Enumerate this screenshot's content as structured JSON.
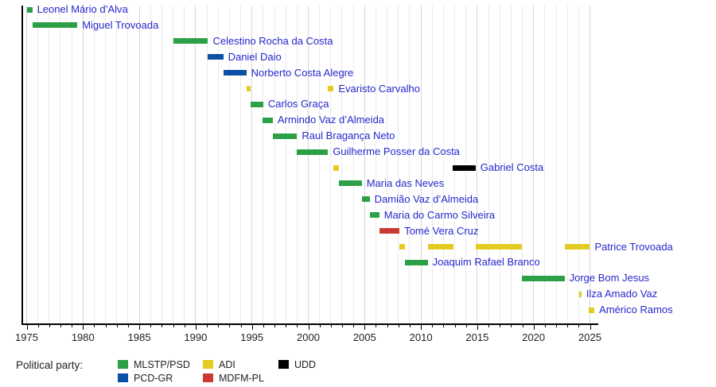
{
  "legend": {
    "title": "Political party:",
    "columns": [
      [
        {
          "label": "MLSTP/PSD",
          "party": "MLSTP/PSD"
        },
        {
          "label": "PCD-GR",
          "party": "PCD-GR"
        }
      ],
      [
        {
          "label": "ADI",
          "party": "ADI"
        },
        {
          "label": "MDFM-PL",
          "party": "MDFM-PL"
        }
      ],
      [
        {
          "label": "UDD",
          "party": "UDD"
        }
      ]
    ]
  },
  "colors": {
    "label_text": "#2727CC",
    "axis_text": "#202122",
    "gridline_minor": "#EAEAEA",
    "gridline_major": "#D6D6D6",
    "axis_line": "#000000"
  },
  "chart_data": {
    "type": "timeline",
    "title": "",
    "xlabel": "",
    "ylabel": "",
    "grid": "vertical, one line per year",
    "legend_position": "bottom",
    "x_axis": {
      "start": 1975,
      "end": 2025,
      "minor_tick_step": 1,
      "major_tick_step": 5,
      "tick_labels": [
        "1975",
        "1980",
        "1985",
        "1990",
        "1995",
        "2000",
        "2005",
        "2010",
        "2015",
        "2020",
        "2025"
      ]
    },
    "party_colors": {
      "MLSTP/PSD": "#2CA046",
      "PCD-GR": "#0C4FA6",
      "ADI": "#E4CB22",
      "MDFM-PL": "#C93A32",
      "UDD": "#000000"
    },
    "people": [
      {
        "name": "Leonel Mário d’Alva",
        "terms": [
          {
            "start": 1975.0,
            "end": 1975.5,
            "party": "MLSTP/PSD"
          }
        ]
      },
      {
        "name": "Miguel Trovoada",
        "terms": [
          {
            "start": 1975.55,
            "end": 1979.5,
            "party": "MLSTP/PSD"
          }
        ]
      },
      {
        "name": "Celestino Rocha da Costa",
        "terms": [
          {
            "start": 1988.0,
            "end": 1991.1,
            "party": "MLSTP/PSD"
          }
        ]
      },
      {
        "name": "Daniel Daio",
        "terms": [
          {
            "start": 1991.1,
            "end": 1992.45,
            "party": "PCD-GR"
          }
        ]
      },
      {
        "name": "Norberto Costa Alegre",
        "terms": [
          {
            "start": 1992.45,
            "end": 1994.5,
            "party": "PCD-GR"
          }
        ]
      },
      {
        "name": "Evaristo Carvalho",
        "terms": [
          {
            "start": 1994.5,
            "end": 1994.85,
            "party": "ADI"
          },
          {
            "start": 2001.7,
            "end": 2002.25,
            "party": "ADI"
          }
        ]
      },
      {
        "name": "Carlos Graça",
        "terms": [
          {
            "start": 1994.85,
            "end": 1996.0,
            "party": "MLSTP/PSD"
          }
        ]
      },
      {
        "name": "Armindo Vaz d’Almeida",
        "terms": [
          {
            "start": 1995.95,
            "end": 1996.85,
            "party": "MLSTP/PSD"
          }
        ]
      },
      {
        "name": "Raul Bragança Neto",
        "terms": [
          {
            "start": 1996.85,
            "end": 1999.0,
            "party": "MLSTP/PSD"
          }
        ]
      },
      {
        "name": "Guilherme Posser da Costa",
        "terms": [
          {
            "start": 1999.0,
            "end": 2001.75,
            "party": "MLSTP/PSD"
          }
        ]
      },
      {
        "name": "Gabriel Costa",
        "terms": [
          {
            "start": 2002.25,
            "end": 2002.75,
            "party": "ADI"
          },
          {
            "start": 2012.85,
            "end": 2014.85,
            "party": "UDD"
          }
        ]
      },
      {
        "name": "Maria das Neves",
        "terms": [
          {
            "start": 2002.75,
            "end": 2004.75,
            "party": "MLSTP/PSD"
          }
        ]
      },
      {
        "name": "Damião Vaz d’Almeida",
        "terms": [
          {
            "start": 2004.75,
            "end": 2005.45,
            "party": "MLSTP/PSD"
          }
        ]
      },
      {
        "name": "Maria do Carmo Silveira",
        "terms": [
          {
            "start": 2005.45,
            "end": 2006.3,
            "party": "MLSTP/PSD"
          }
        ]
      },
      {
        "name": "Tomé Vera Cruz",
        "terms": [
          {
            "start": 2006.3,
            "end": 2008.1,
            "party": "MDFM-PL"
          }
        ]
      },
      {
        "name": "Patrice Trovoada",
        "terms": [
          {
            "start": 2008.1,
            "end": 2008.55,
            "party": "ADI"
          },
          {
            "start": 2010.6,
            "end": 2012.9,
            "party": "ADI"
          },
          {
            "start": 2014.9,
            "end": 2018.95,
            "party": "ADI"
          },
          {
            "start": 2022.75,
            "end": 2025.0,
            "party": "ADI"
          }
        ]
      },
      {
        "name": "Joaquim Rafael Branco",
        "terms": [
          {
            "start": 2008.55,
            "end": 2010.6,
            "party": "MLSTP/PSD"
          }
        ]
      },
      {
        "name": "Jorge Bom Jesus",
        "terms": [
          {
            "start": 2018.95,
            "end": 2022.75,
            "party": "MLSTP/PSD"
          }
        ]
      },
      {
        "name": "Ilza Amado Vaz",
        "terms": [
          {
            "start": 2024.05,
            "end": 2024.25,
            "party": "ADI"
          }
        ]
      },
      {
        "name": "Américo Ramos",
        "terms": [
          {
            "start": 2024.9,
            "end": 2025.4,
            "party": "ADI"
          }
        ]
      }
    ]
  }
}
